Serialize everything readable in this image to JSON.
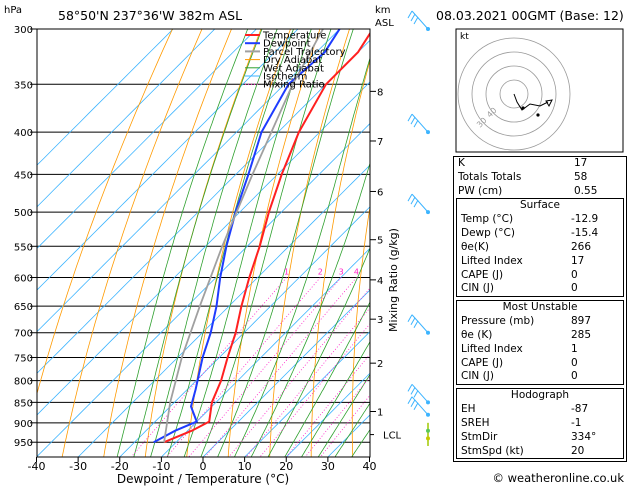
{
  "header": {
    "location": "58°50'N  237°36'W  382m  ASL",
    "datetime": "08.03.2021  00GMT  (Base: 12)",
    "hpa_label": "hPa",
    "km_label": "km",
    "asl_label": "ASL"
  },
  "axes": {
    "xlabel": "Dewpoint / Temperature (°C)",
    "ylabel": "Mixing Ratio (g/kg)",
    "x_ticks": [
      "-40",
      "-30",
      "-20",
      "-10",
      "0",
      "10",
      "20",
      "30",
      "40"
    ],
    "p_ticks": [
      "300",
      "350",
      "400",
      "450",
      "500",
      "550",
      "600",
      "650",
      "700",
      "750",
      "800",
      "850",
      "900",
      "950"
    ],
    "km_ticks": [
      "8",
      "7",
      "6",
      "5",
      "4",
      "3",
      "2",
      "1"
    ],
    "lcl_label": "LCL",
    "mixing_ratio_labels": [
      "1",
      "2",
      "3",
      "4",
      "6",
      "8",
      "10",
      "15",
      "20",
      "25"
    ]
  },
  "legend": {
    "temperature": "Temperature",
    "dewpoint": "Dewpoint",
    "parcel": "Parcel Trajectory",
    "dry": "Dry Adiabat",
    "wet": "Wet Adiabat",
    "isotherm": "Isotherm",
    "mixing": "Mixing Ratio"
  },
  "colors": {
    "temperature": "#ff2020",
    "dewpoint": "#1e3cff",
    "parcel": "#a0a0a0",
    "dry": "#ff9a00",
    "wet": "#2ea02e",
    "isotherm": "#3cb4ff",
    "mixing": "#ff22c8"
  },
  "hodograph": {
    "unit": "kt",
    "ring_labels": [
      "10",
      "20",
      "30",
      "40"
    ]
  },
  "indices": {
    "k_label": "K",
    "k_value": "17",
    "tt_label": "Totals Totals",
    "tt_value": "58",
    "pw_label": "PW (cm)",
    "pw_value": "0.55"
  },
  "surface": {
    "title": "Surface",
    "temp_label": "Temp (°C)",
    "temp_value": "-12.9",
    "dewp_label": "Dewp (°C)",
    "dewp_value": "-15.4",
    "theta_label": "θe(K)",
    "theta_value": "266",
    "li_label": "Lifted Index",
    "li_value": "17",
    "cape_label": "CAPE (J)",
    "cape_value": "0",
    "cin_label": "CIN (J)",
    "cin_value": "0"
  },
  "most_unstable": {
    "title": "Most Unstable",
    "pres_label": "Pressure (mb)",
    "pres_value": "897",
    "theta_label": "θe (K)",
    "theta_value": "285",
    "li_label": "Lifted Index",
    "li_value": "1",
    "cape_label": "CAPE (J)",
    "cape_value": "0",
    "cin_label": "CIN (J)",
    "cin_value": "0"
  },
  "hodograph_table": {
    "title": "Hodograph",
    "eh_label": "EH",
    "eh_value": "-87",
    "sreh_label": "SREH",
    "sreh_value": "-1",
    "stmdir_label": "StmDir",
    "stmdir_value": "334°",
    "stmspd_label": "StmSpd (kt)",
    "stmspd_value": "20"
  },
  "copyright": "© weatheronline.co.uk",
  "chart_data": {
    "type": "line",
    "title": "58°50'N  237°36'W  382m  ASL",
    "xlabel": "Dewpoint / Temperature (°C)",
    "ylabel": "hPa",
    "xlim": [
      -40,
      40
    ],
    "ylim": [
      990,
      300
    ],
    "series": [
      {
        "name": "Temperature",
        "points": [
          [
            950,
            -12.9
          ],
          [
            920,
            -9
          ],
          [
            897,
            -7
          ],
          [
            850,
            -11
          ],
          [
            800,
            -14
          ],
          [
            750,
            -18
          ],
          [
            700,
            -22
          ],
          [
            650,
            -27
          ],
          [
            600,
            -32
          ],
          [
            550,
            -37
          ],
          [
            500,
            -43
          ],
          [
            450,
            -49
          ],
          [
            400,
            -55
          ],
          [
            350,
            -60
          ],
          [
            320,
            -60
          ],
          [
            300,
            -62
          ]
        ]
      },
      {
        "name": "Dewpoint",
        "points": [
          [
            950,
            -15.4
          ],
          [
            920,
            -13
          ],
          [
            897,
            -10
          ],
          [
            860,
            -15
          ],
          [
            820,
            -18
          ],
          [
            750,
            -24
          ],
          [
            700,
            -28
          ],
          [
            650,
            -33
          ],
          [
            600,
            -39
          ],
          [
            550,
            -45
          ],
          [
            500,
            -51
          ],
          [
            450,
            -57
          ],
          [
            400,
            -64
          ],
          [
            350,
            -69
          ],
          [
            320,
            -68
          ],
          [
            300,
            -70
          ]
        ]
      },
      {
        "name": "Parcel Trajectory",
        "points": [
          [
            950,
            -12.9
          ],
          [
            850,
            -21
          ],
          [
            750,
            -29
          ],
          [
            650,
            -37
          ],
          [
            550,
            -46
          ],
          [
            450,
            -56
          ],
          [
            350,
            -68
          ],
          [
            300,
            -74
          ]
        ]
      }
    ]
  }
}
